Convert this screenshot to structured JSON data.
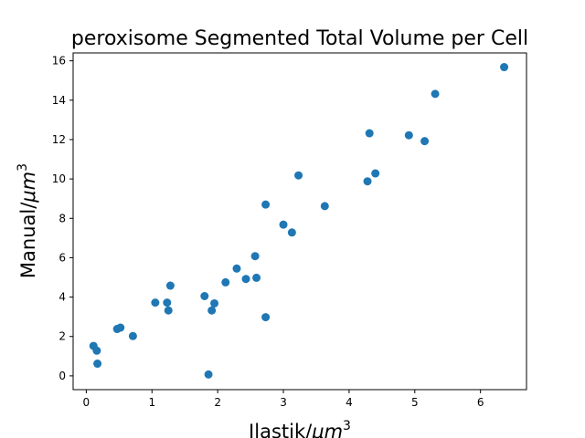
{
  "chart_data": {
    "type": "scatter",
    "title": "peroxisome Segmented Total Volume per Cell",
    "xlabel": "Ilastik/",
    "xlabel_unit": "μm",
    "xlabel_sup": "3",
    "ylabel": "Manual/",
    "ylabel_unit": "μm",
    "ylabel_sup": "3",
    "xlim": [
      -0.2,
      6.7
    ],
    "ylim": [
      -0.7,
      16.4
    ],
    "xticks": [
      0,
      1,
      2,
      3,
      4,
      5,
      6
    ],
    "yticks": [
      0,
      2,
      4,
      6,
      8,
      10,
      12,
      14,
      16
    ],
    "grid": false,
    "marker_color": "#1f77b4",
    "points": [
      {
        "x": 0.11,
        "y": 1.52
      },
      {
        "x": 0.16,
        "y": 1.28
      },
      {
        "x": 0.17,
        "y": 0.62
      },
      {
        "x": 0.47,
        "y": 2.38
      },
      {
        "x": 0.52,
        "y": 2.45
      },
      {
        "x": 0.71,
        "y": 2.02
      },
      {
        "x": 1.05,
        "y": 3.72
      },
      {
        "x": 1.23,
        "y": 3.72
      },
      {
        "x": 1.25,
        "y": 3.32
      },
      {
        "x": 1.28,
        "y": 4.58
      },
      {
        "x": 1.8,
        "y": 4.05
      },
      {
        "x": 1.86,
        "y": 0.07
      },
      {
        "x": 1.91,
        "y": 3.32
      },
      {
        "x": 1.95,
        "y": 3.68
      },
      {
        "x": 2.12,
        "y": 4.75
      },
      {
        "x": 2.29,
        "y": 5.45
      },
      {
        "x": 2.43,
        "y": 4.92
      },
      {
        "x": 2.57,
        "y": 6.08
      },
      {
        "x": 2.59,
        "y": 4.98
      },
      {
        "x": 2.73,
        "y": 8.7
      },
      {
        "x": 2.73,
        "y": 2.98
      },
      {
        "x": 3.0,
        "y": 7.68
      },
      {
        "x": 3.13,
        "y": 7.28
      },
      {
        "x": 3.23,
        "y": 10.18
      },
      {
        "x": 3.63,
        "y": 8.62
      },
      {
        "x": 4.28,
        "y": 9.88
      },
      {
        "x": 4.31,
        "y": 12.32
      },
      {
        "x": 4.4,
        "y": 10.28
      },
      {
        "x": 4.91,
        "y": 12.22
      },
      {
        "x": 5.15,
        "y": 11.92
      },
      {
        "x": 5.31,
        "y": 14.32
      },
      {
        "x": 6.36,
        "y": 15.68
      }
    ]
  }
}
